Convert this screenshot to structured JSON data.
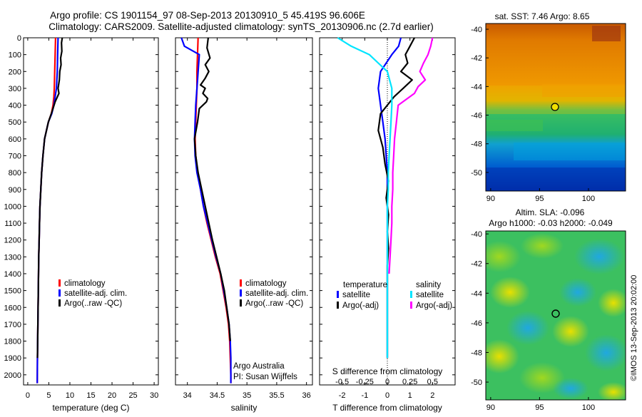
{
  "header": {
    "line1": "Argo profile: CS 1901154_97 08-Sep-2013 20130910_5 45.419S 96.606E",
    "line2": "Climatology: CARS2009. Satellite-adjusted climatology: synTS_20130906.nc (2.7d earlier)"
  },
  "colors": {
    "climatology": "#ff0000",
    "satellite_adj": "#0000ff",
    "argo": "#000000",
    "sal_satellite": "#00e5ff",
    "sal_argo": "#ff00ff"
  },
  "chart_data": [
    {
      "type": "line",
      "name": "temperature-profile",
      "xlabel": "temperature (deg C)",
      "ylim": [
        2060,
        0
      ],
      "xlim": [
        -1,
        31
      ],
      "xticks": [
        "0",
        "5",
        "10",
        "15",
        "20",
        "25",
        "30"
      ],
      "yticks": [
        "0",
        "100",
        "200",
        "300",
        "400",
        "500",
        "600",
        "700",
        "800",
        "900",
        "1000",
        "1100",
        "1200",
        "1300",
        "1400",
        "1500",
        "1600",
        "1700",
        "1800",
        "1900",
        "2000"
      ],
      "legend": [
        "climatology",
        "satellite-adj. clim.",
        "Argo(..raw -QC)"
      ],
      "series": [
        {
          "name": "climatology",
          "color": "red",
          "x": [
            6.6,
            6.5,
            6.4,
            6.3,
            6.2,
            6.0,
            5.6,
            4.9,
            4.0,
            3.6,
            3.3,
            3.1,
            2.9,
            2.8,
            2.7,
            2.6,
            2.55,
            2.5,
            2.45,
            2.4,
            2.35,
            2.3,
            2.25
          ],
          "y": [
            0,
            100,
            200,
            300,
            350,
            400,
            450,
            500,
            600,
            700,
            800,
            900,
            1000,
            1100,
            1200,
            1300,
            1400,
            1500,
            1600,
            1700,
            1800,
            1900,
            2050
          ]
        },
        {
          "name": "satellite-adj. clim.",
          "color": "blue",
          "x": [
            7.2,
            7.1,
            7.0,
            6.8,
            6.5,
            6.2,
            5.7,
            4.9,
            4.0,
            3.6,
            3.3,
            3.1,
            2.9,
            2.8,
            2.7,
            2.6,
            2.55,
            2.5,
            2.45,
            2.4,
            2.35,
            2.3,
            2.25
          ],
          "y": [
            0,
            100,
            200,
            300,
            350,
            400,
            450,
            500,
            600,
            700,
            800,
            900,
            1000,
            1100,
            1200,
            1300,
            1400,
            1500,
            1600,
            1700,
            1800,
            1900,
            2050
          ]
        },
        {
          "name": "Argo(..raw -QC)",
          "color": "black",
          "x": [
            8.2,
            8.0,
            8.1,
            7.8,
            7.9,
            7.6,
            7.5,
            7.2,
            7.4,
            6.5,
            5.6,
            4.9,
            4.0,
            3.6,
            3.3,
            3.1,
            2.9,
            2.8,
            2.7,
            2.6,
            2.55,
            2.5,
            2.45,
            2.4,
            2.35,
            2.3
          ],
          "y": [
            0,
            30,
            80,
            120,
            160,
            200,
            250,
            300,
            330,
            380,
            450,
            500,
            600,
            700,
            800,
            900,
            1000,
            1100,
            1200,
            1300,
            1400,
            1500,
            1600,
            1700,
            1800,
            1900
          ]
        }
      ]
    },
    {
      "type": "line",
      "name": "salinity-profile",
      "xlabel": "salinity",
      "ylim": [
        2060,
        0
      ],
      "xlim": [
        33.8,
        36.1
      ],
      "xticks": [
        "34",
        "34.5",
        "35",
        "35.5",
        "36"
      ],
      "legend": [
        "climatology",
        "satellite-adj. clim.",
        "Argo(..raw -QC)"
      ],
      "annotation": [
        "Argo Australia",
        "PI: Susan Wijffels"
      ],
      "series": [
        {
          "name": "climatology",
          "color": "red",
          "x": [
            34.18,
            34.17,
            34.16,
            34.16,
            34.15,
            34.14,
            34.13,
            34.14,
            34.17,
            34.22,
            34.27,
            34.33,
            34.4,
            34.47,
            34.55,
            34.6,
            34.65,
            34.69,
            34.71,
            34.72,
            34.73,
            34.73
          ],
          "y": [
            0,
            100,
            200,
            300,
            400,
            500,
            600,
            700,
            800,
            900,
            1000,
            1100,
            1200,
            1300,
            1400,
            1500,
            1600,
            1700,
            1800,
            1900,
            2000,
            2050
          ]
        },
        {
          "name": "satellite-adj. clim.",
          "color": "blue",
          "x": [
            33.9,
            33.95,
            34.2,
            34.16,
            34.14,
            34.13,
            34.12,
            34.13,
            34.16,
            34.22,
            34.27,
            34.34,
            34.41,
            34.48,
            34.56,
            34.61,
            34.66,
            34.7,
            34.72,
            34.73,
            34.73,
            34.73
          ],
          "y": [
            0,
            50,
            100,
            300,
            400,
            500,
            600,
            700,
            800,
            900,
            1000,
            1100,
            1200,
            1300,
            1400,
            1500,
            1600,
            1700,
            1800,
            1900,
            2000,
            2050
          ]
        },
        {
          "name": "Argo(..raw -QC)",
          "color": "black",
          "x": [
            34.35,
            34.33,
            34.38,
            34.3,
            34.36,
            34.3,
            34.22,
            34.3,
            34.26,
            34.34,
            34.32,
            34.2,
            34.17,
            34.12,
            34.14,
            34.18,
            34.24,
            34.3,
            34.36,
            34.42,
            34.49,
            34.56,
            34.62,
            34.66,
            34.7,
            34.72
          ],
          "y": [
            0,
            60,
            120,
            160,
            200,
            240,
            280,
            300,
            330,
            360,
            380,
            420,
            500,
            600,
            700,
            800,
            900,
            1000,
            1100,
            1200,
            1300,
            1400,
            1500,
            1600,
            1700,
            1800
          ]
        }
      ]
    },
    {
      "type": "line",
      "name": "difference-profile",
      "xlabel": "T difference from climatology",
      "xlabel2": "S difference from climatology",
      "ylim": [
        2060,
        0
      ],
      "xlim": [
        -3,
        3
      ],
      "xticks": [
        "-2",
        "-1",
        "0",
        "1",
        "2"
      ],
      "xticks2": [
        "-0.5",
        "-0.25",
        "0",
        "0.25",
        "0.5"
      ],
      "legend_headers": [
        "temperature",
        "salinity"
      ],
      "legend": [
        "satellite",
        "Argo(-adj)",
        "satellite",
        "Argo(-adj)"
      ],
      "series": [
        {
          "name": "temperature satellite",
          "color": "blue",
          "x": [
            0.6,
            0.5,
            0.2,
            -0.3,
            -0.4,
            -0.3,
            -0.2,
            -0.1,
            -0.05,
            0,
            0,
            0,
            0,
            0,
            0,
            0,
            0,
            0,
            0,
            0,
            0
          ],
          "y": [
            0,
            50,
            100,
            200,
            300,
            400,
            500,
            600,
            700,
            800,
            900,
            1000,
            1100,
            1200,
            1300,
            1400,
            1500,
            1600,
            1700,
            1800,
            1900
          ]
        },
        {
          "name": "temperature Argo(-adj)",
          "color": "black",
          "x": [
            1.2,
            1.0,
            0.8,
            0.9,
            0.6,
            1.1,
            0.7,
            0.3,
            -0.3,
            -0.4,
            -0.2,
            -0.1,
            0.05,
            -0.05,
            0.05,
            0,
            0.05,
            0,
            0,
            0,
            0
          ],
          "y": [
            0,
            50,
            100,
            150,
            200,
            250,
            300,
            350,
            450,
            550,
            650,
            750,
            850,
            950,
            1050,
            1150,
            1250,
            1350,
            1500,
            1700,
            1900
          ]
        },
        {
          "name": "salinity satellite",
          "color": "cyan",
          "x": [
            -0.55,
            -0.4,
            -0.2,
            -0.1,
            0.0,
            0.05,
            0.05,
            0.04,
            0.03,
            0.02,
            0.01,
            0.01,
            0,
            0,
            0,
            0,
            0,
            0,
            0,
            0,
            0
          ],
          "y": [
            0,
            50,
            100,
            150,
            200,
            300,
            400,
            500,
            600,
            700,
            800,
            900,
            1000,
            1100,
            1200,
            1300,
            1400,
            1500,
            1600,
            1700,
            1900
          ]
        },
        {
          "name": "salinity Argo(-adj)",
          "color": "magenta",
          "x": [
            0.5,
            0.48,
            0.45,
            0.4,
            0.36,
            0.42,
            0.34,
            0.3,
            0.12,
            0.1,
            0.08,
            0.07,
            0.06,
            0.06,
            0.05,
            0.05,
            0.04,
            0.03,
            0.02
          ],
          "y": [
            0,
            50,
            100,
            150,
            200,
            250,
            290,
            330,
            400,
            500,
            600,
            700,
            800,
            900,
            1000,
            1100,
            1200,
            1300,
            1400
          ]
        }
      ]
    },
    {
      "type": "heatmap",
      "name": "sst-map",
      "title": "sat. SST: 7.46 Argo: 8.65",
      "xticks": [
        "90",
        "95",
        "100"
      ],
      "yticks": [
        "-40",
        "-42",
        "-44",
        "-46",
        "-48",
        "-50"
      ],
      "marker": {
        "lon": 96.6,
        "lat": -45.4
      }
    },
    {
      "type": "heatmap",
      "name": "sla-map",
      "title": [
        "Altim. SLA: -0.096",
        "Argo h1000: -0.03 h2000: -0.049"
      ],
      "xticks": [
        "90",
        "95",
        "100"
      ],
      "yticks": [
        "-40",
        "-42",
        "-44",
        "-46",
        "-48",
        "-50"
      ],
      "marker": {
        "lon": 96.6,
        "lat": -45.4
      }
    }
  ],
  "footer_stamp": "©IMOS 13-Sep-2013 20:02:00"
}
